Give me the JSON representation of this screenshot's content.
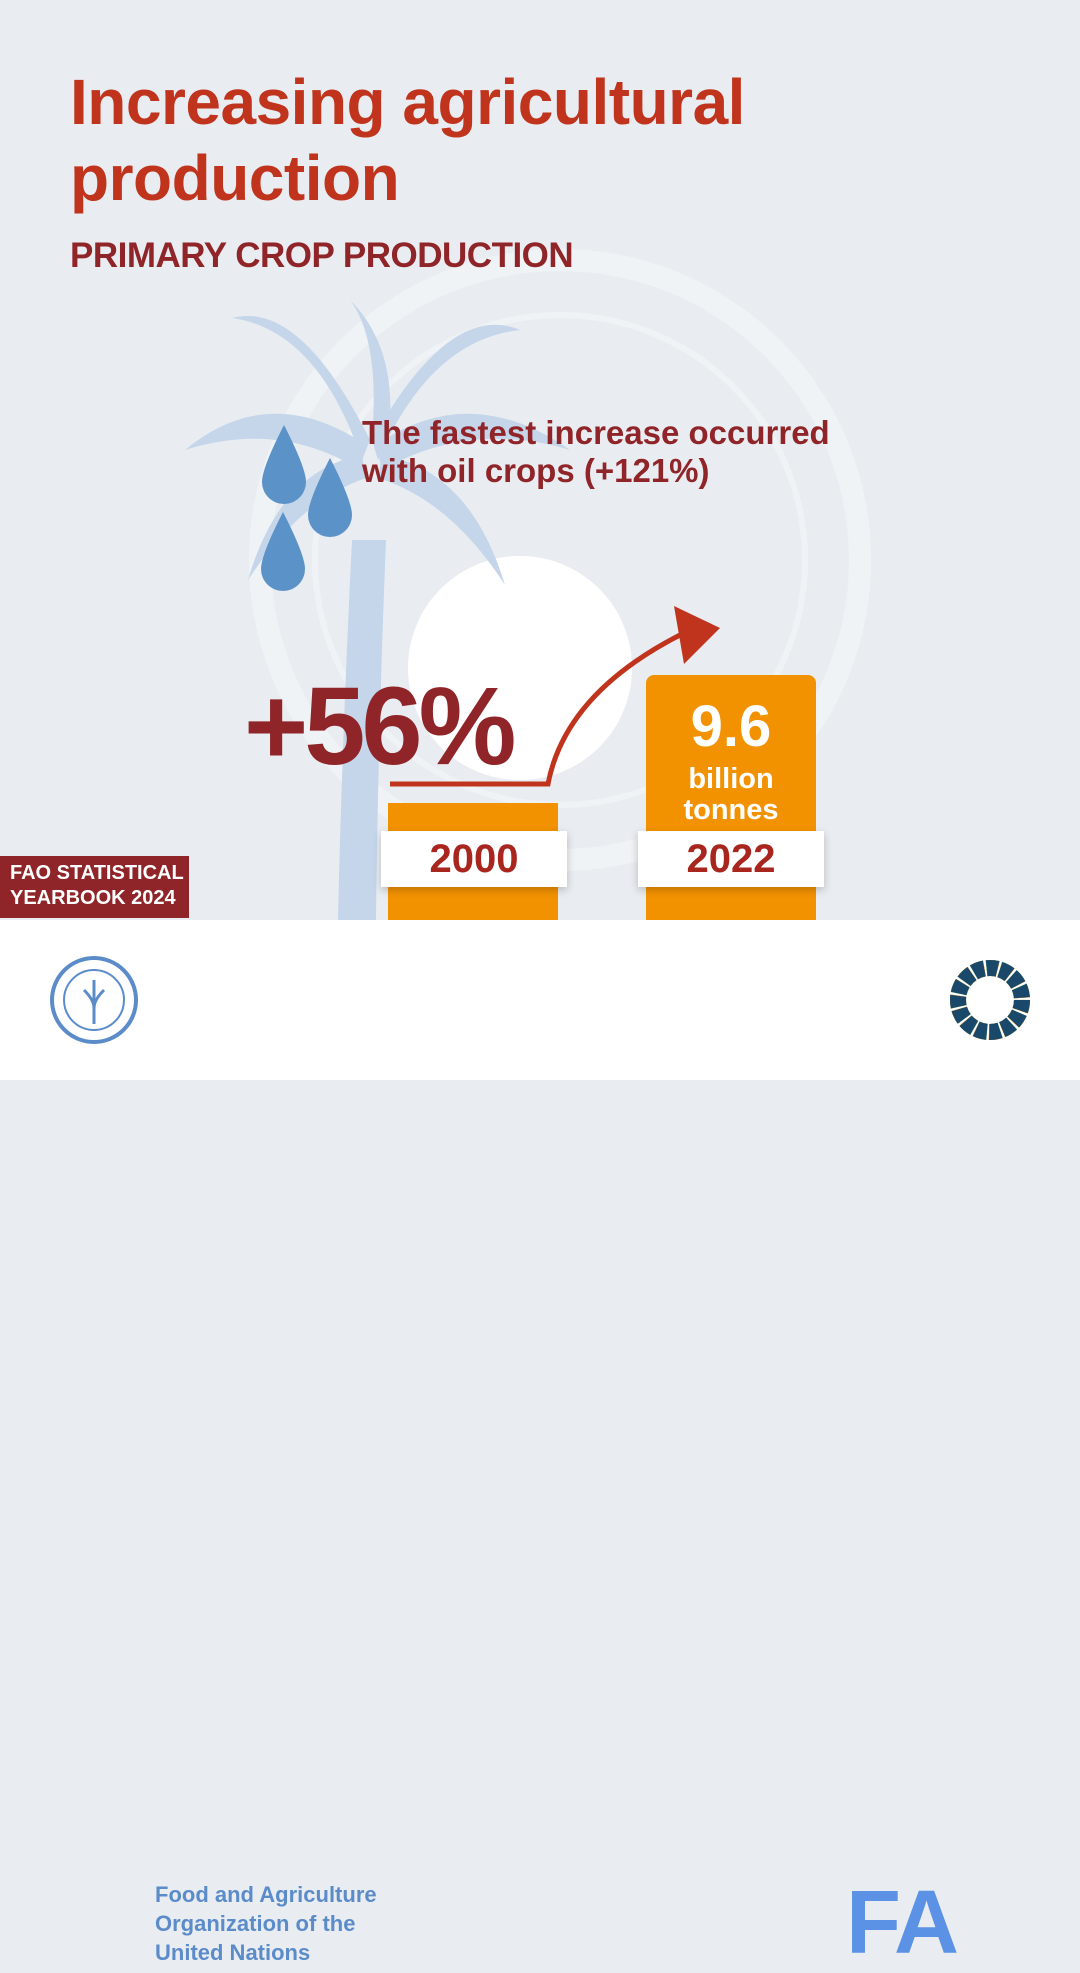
{
  "header": {
    "title_line1": "Increasing agricultural",
    "title_line2": "production",
    "subtitle": "PRIMARY CROP PRODUCTION"
  },
  "highlight": {
    "line1": "The fastest increase occurred",
    "line2": "with oil crops (+121%)"
  },
  "change": {
    "label": "+56%"
  },
  "bars": [
    {
      "year": "2000"
    },
    {
      "year": "2022",
      "value": "9.6",
      "unit_line1": "billion",
      "unit_line2": "tonnes"
    }
  ],
  "badge": {
    "line1": "FAO STATISTICAL",
    "line2": "YEARBOOK 2024"
  },
  "footer": {
    "org_line1": "Food and Agriculture",
    "org_line2": "Organization of the",
    "org_line3": "United Nations",
    "wordmark": "FA"
  },
  "colors": {
    "title": "#c0341d",
    "accent_dark": "#8f2529",
    "bar": "#f39200",
    "fao_blue": "#5b92e5"
  },
  "icons": [
    "palm-tree-icon",
    "oil-drops-icon",
    "growth-arrow-icon",
    "fao-emblem-icon",
    "sdg-wheel-icon"
  ]
}
